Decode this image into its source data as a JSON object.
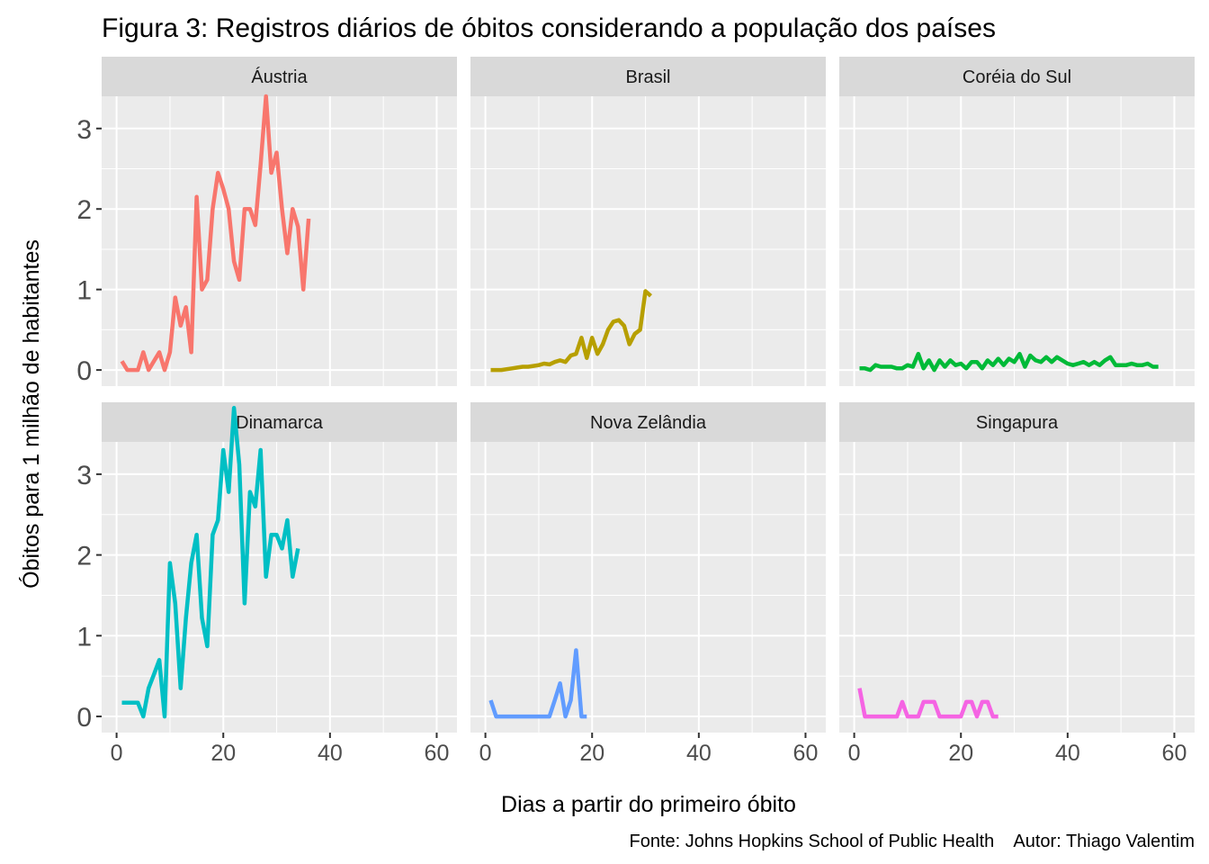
{
  "chart_data": {
    "type": "line",
    "title": "Figura 3: Registros diários de óbitos considerando a população dos países",
    "xlabel": "Dias a partir do primeiro óbito",
    "ylabel": "Óbitos para 1 milhão de habitantes",
    "caption": "Fonte: Johns Hopkins School of Public Health    Autor: Thiago Valentim",
    "xlim": [
      -2.8,
      63.8
    ],
    "ylim": [
      -0.2,
      3.4
    ],
    "x_ticks": [
      0,
      20,
      40,
      60
    ],
    "y_ticks": [
      0,
      1,
      2,
      3
    ],
    "grid": true,
    "legend": "none",
    "facet_layout": {
      "rows": 2,
      "cols": 3
    },
    "series": [
      {
        "name": "Áustria",
        "color": "#F8766D",
        "x": [
          1,
          2,
          3,
          4,
          5,
          6,
          7,
          8,
          9,
          10,
          11,
          12,
          13,
          14,
          15,
          16,
          17,
          18,
          19,
          20,
          21,
          22,
          23,
          24,
          25,
          26,
          27,
          28,
          29,
          30,
          31,
          32,
          33,
          34,
          35,
          36
        ],
        "y": [
          0.11,
          0.0,
          0.0,
          0.0,
          0.22,
          0.0,
          0.11,
          0.22,
          0.0,
          0.22,
          0.9,
          0.55,
          0.78,
          0.22,
          2.15,
          1.0,
          1.12,
          2.0,
          2.45,
          2.25,
          2.0,
          1.35,
          1.12,
          2.0,
          2.0,
          1.8,
          2.55,
          3.4,
          2.45,
          2.7,
          2.0,
          1.45,
          2.0,
          1.78,
          1.0,
          1.88
        ]
      },
      {
        "name": "Brasil",
        "color": "#B79F00",
        "x": [
          1,
          2,
          3,
          4,
          5,
          6,
          7,
          8,
          9,
          10,
          11,
          12,
          13,
          14,
          15,
          16,
          17,
          18,
          19,
          20,
          21,
          22,
          23,
          24,
          25,
          26,
          27,
          28,
          29,
          30,
          31
        ],
        "y": [
          0.0,
          0.0,
          0.0,
          0.01,
          0.02,
          0.03,
          0.04,
          0.04,
          0.05,
          0.06,
          0.08,
          0.07,
          0.1,
          0.12,
          0.1,
          0.18,
          0.2,
          0.4,
          0.15,
          0.4,
          0.2,
          0.32,
          0.5,
          0.6,
          0.62,
          0.55,
          0.32,
          0.45,
          0.5,
          0.98,
          0.92
        ]
      },
      {
        "name": "Coréia do Sul",
        "color": "#00BA38",
        "x": [
          1,
          2,
          3,
          4,
          5,
          6,
          7,
          8,
          9,
          10,
          11,
          12,
          13,
          14,
          15,
          16,
          17,
          18,
          19,
          20,
          21,
          22,
          23,
          24,
          25,
          26,
          27,
          28,
          29,
          30,
          31,
          32,
          33,
          34,
          35,
          36,
          37,
          38,
          39,
          40,
          41,
          42,
          43,
          44,
          45,
          46,
          47,
          48,
          49,
          50,
          51,
          52,
          53,
          54,
          55,
          56,
          57
        ],
        "y": [
          0.02,
          0.02,
          0.0,
          0.06,
          0.04,
          0.04,
          0.04,
          0.02,
          0.02,
          0.06,
          0.04,
          0.2,
          0.02,
          0.12,
          0.0,
          0.12,
          0.04,
          0.12,
          0.06,
          0.08,
          0.02,
          0.1,
          0.1,
          0.02,
          0.12,
          0.06,
          0.14,
          0.06,
          0.14,
          0.1,
          0.2,
          0.04,
          0.18,
          0.12,
          0.1,
          0.16,
          0.1,
          0.16,
          0.12,
          0.08,
          0.06,
          0.08,
          0.1,
          0.06,
          0.1,
          0.06,
          0.12,
          0.16,
          0.06,
          0.06,
          0.06,
          0.08,
          0.06,
          0.06,
          0.08,
          0.04,
          0.04
        ]
      },
      {
        "name": "Dinamarca",
        "color": "#00BFC4",
        "x": [
          1,
          2,
          3,
          4,
          5,
          6,
          7,
          8,
          9,
          10,
          11,
          12,
          13,
          14,
          15,
          16,
          17,
          18,
          19,
          20,
          21,
          22,
          23,
          24,
          25,
          26,
          27,
          28,
          29,
          30,
          31,
          32,
          33,
          34
        ],
        "y": [
          0.17,
          0.17,
          0.17,
          0.17,
          0.0,
          0.35,
          0.52,
          0.7,
          0.0,
          1.9,
          1.4,
          0.35,
          1.22,
          1.9,
          2.25,
          1.22,
          0.87,
          2.25,
          2.43,
          3.3,
          2.78,
          3.82,
          3.12,
          1.4,
          2.78,
          2.6,
          3.3,
          1.73,
          2.25,
          2.25,
          2.08,
          2.43,
          1.73,
          2.08
        ]
      },
      {
        "name": "Nova Zelândia",
        "color": "#619CFF",
        "x": [
          1,
          2,
          3,
          4,
          5,
          6,
          7,
          8,
          9,
          10,
          11,
          12,
          13,
          14,
          15,
          16,
          17,
          18,
          19
        ],
        "y": [
          0.2,
          0.0,
          0.0,
          0.0,
          0.0,
          0.0,
          0.0,
          0.0,
          0.0,
          0.0,
          0.0,
          0.0,
          0.2,
          0.41,
          0.0,
          0.2,
          0.82,
          0.0,
          0.0
        ]
      },
      {
        "name": "Singapura",
        "color": "#F564E3",
        "x": [
          1,
          2,
          3,
          4,
          5,
          6,
          7,
          8,
          9,
          10,
          11,
          12,
          13,
          14,
          15,
          16,
          17,
          18,
          19,
          20,
          21,
          22,
          23,
          24,
          25,
          26,
          27
        ],
        "y": [
          0.35,
          0.0,
          0.0,
          0.0,
          0.0,
          0.0,
          0.0,
          0.0,
          0.18,
          0.0,
          0.0,
          0.0,
          0.18,
          0.18,
          0.18,
          0.0,
          0.0,
          0.0,
          0.0,
          0.0,
          0.18,
          0.18,
          0.0,
          0.18,
          0.18,
          0.0,
          0.0
        ]
      }
    ]
  }
}
